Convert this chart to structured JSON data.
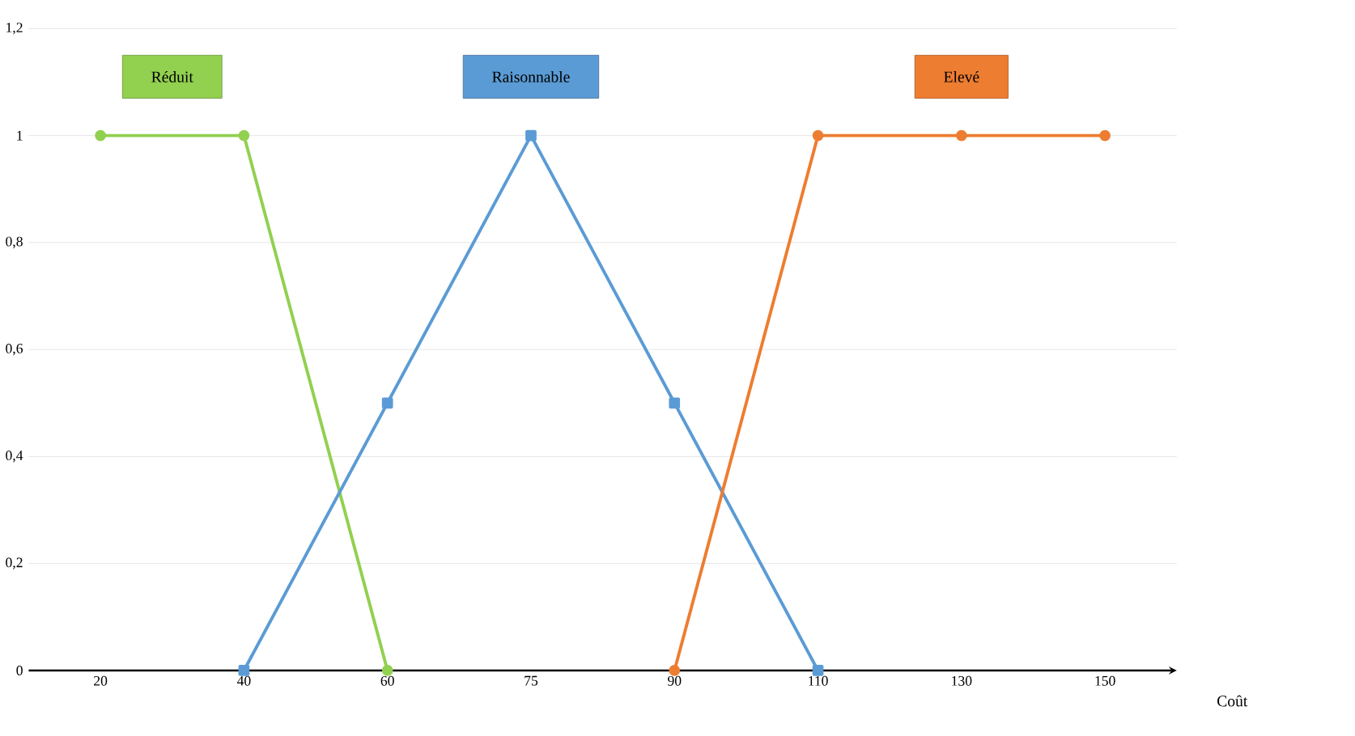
{
  "chart_data": {
    "type": "line",
    "xlabel": "Coût",
    "categories": [
      "20",
      "40",
      "60",
      "75",
      "90",
      "110",
      "130",
      "150"
    ],
    "series": [
      {
        "name": "Réduit",
        "color": "#92d050",
        "marker": "circle",
        "values": [
          1,
          1,
          0,
          null,
          null,
          null,
          null,
          null
        ]
      },
      {
        "name": "Raisonnable",
        "color": "#5b9bd5",
        "marker": "square",
        "values": [
          null,
          0,
          0.5,
          1,
          0.5,
          0,
          null,
          null
        ]
      },
      {
        "name": "Elevé",
        "color": "#ed7d31",
        "marker": "circle",
        "values": [
          null,
          null,
          null,
          null,
          0,
          1,
          1,
          1
        ]
      }
    ],
    "ylim": [
      0,
      1.2
    ],
    "yticks": [
      {
        "value": 0,
        "label": "0"
      },
      {
        "value": 0.2,
        "label": "0,2"
      },
      {
        "value": 0.4,
        "label": "0,4"
      },
      {
        "value": 0.6,
        "label": "0,6"
      },
      {
        "value": 0.8,
        "label": "0,8"
      },
      {
        "value": 1,
        "label": "1"
      },
      {
        "value": 1.2,
        "label": "1,2"
      }
    ],
    "grid": "y",
    "legend": false
  }
}
